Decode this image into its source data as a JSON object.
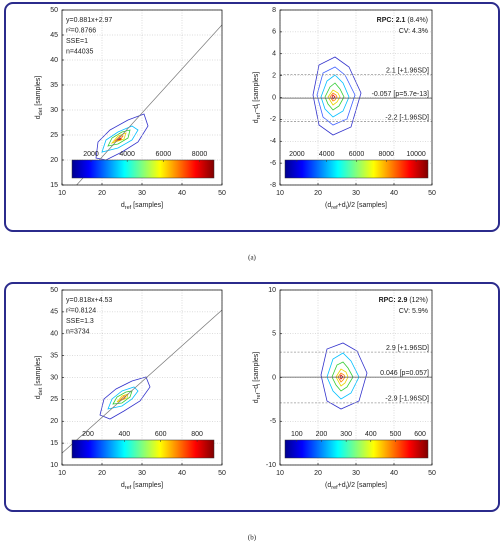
{
  "chart_data": [
    {
      "type": "contour",
      "xlim": [
        10,
        50
      ],
      "ylim": [
        15,
        50
      ],
      "xticks": [
        10,
        20,
        30,
        40,
        50
      ],
      "yticks": [
        15,
        20,
        25,
        30,
        35,
        40,
        45,
        50
      ],
      "xlabel": [
        "d",
        "ref",
        " [samples]"
      ],
      "ylabel": [
        "d",
        "det",
        " [samples]"
      ],
      "annotations": [
        "y=0.881x+2.97",
        "r²=0.8766",
        "SSE=1",
        "n=44035"
      ],
      "fit": {
        "slope": 0.881,
        "intercept": 2.97
      },
      "colorbar": {
        "lim": [
          950,
          8800
        ],
        "ticks": [
          2000,
          4000,
          6000,
          8000
        ]
      },
      "grid": true
    },
    {
      "type": "bland-altman",
      "xlim": [
        10,
        50
      ],
      "ylim": [
        -8,
        8
      ],
      "xticks": [
        10,
        20,
        30,
        40,
        50
      ],
      "yticks": [
        -8,
        -6,
        -4,
        -2,
        0,
        2,
        4,
        6,
        8
      ],
      "xlabel": [
        "(d",
        "ref",
        "+d",
        "i",
        ")/2 [samples]"
      ],
      "ylabel": [
        "d",
        "ref",
        "−d",
        "i",
        " [samples]"
      ],
      "rpc": {
        "label": "RPC: 2.1",
        "detail": " (8.4%)"
      },
      "cv": "CV: 4.3%",
      "hlines": [
        {
          "value": 2.1,
          "label": "2.1 [+1.96SD]"
        },
        {
          "value": -0.057,
          "label": "-0.057 [p=5.7e-13]"
        },
        {
          "value": -2.2,
          "label": "-2.2 [-1.96SD]"
        }
      ],
      "colorbar": {
        "lim": [
          1200,
          10800
        ],
        "ticks": [
          2000,
          4000,
          6000,
          8000,
          10000
        ]
      },
      "grid": true
    },
    {
      "type": "contour",
      "xlim": [
        10,
        50
      ],
      "ylim": [
        10,
        50
      ],
      "xticks": [
        10,
        20,
        30,
        40,
        50
      ],
      "yticks": [
        10,
        15,
        20,
        25,
        30,
        35,
        40,
        45,
        50
      ],
      "xlabel": [
        "d",
        "ref",
        " [samples]"
      ],
      "ylabel": [
        "d",
        "det",
        " [samples]"
      ],
      "annotations": [
        "y=0.818x+4.53",
        "r²=0.8124",
        "SSE=1.3",
        "n=3734"
      ],
      "fit": {
        "slope": 0.818,
        "intercept": 4.53
      },
      "colorbar": {
        "lim": [
          112,
          893
        ],
        "ticks": [
          200,
          400,
          600,
          800
        ]
      },
      "grid": true
    },
    {
      "type": "bland-altman",
      "xlim": [
        10,
        50
      ],
      "ylim": [
        -10,
        10
      ],
      "xticks": [
        10,
        20,
        30,
        40,
        50
      ],
      "yticks": [
        -10,
        -5,
        0,
        5,
        10
      ],
      "xlabel": [
        "(d",
        "ref",
        "+d",
        "i",
        ")/2 [samples]"
      ],
      "ylabel": [
        "d",
        "ref",
        "−d",
        "i",
        " [samples]"
      ],
      "rpc": {
        "label": "RPC: 2.9",
        "detail": " (12%)"
      },
      "cv": "CV: 5.9%",
      "hlines": [
        {
          "value": 2.9,
          "label": "2.9 [+1.96SD]"
        },
        {
          "value": 0.046,
          "label": "0.046 [p=0.057]"
        },
        {
          "value": -2.9,
          "label": "-2.9 [-1.96SD]"
        }
      ],
      "colorbar": {
        "lim": [
          52,
          632
        ],
        "ticks": [
          100,
          200,
          300,
          400,
          500,
          600
        ]
      },
      "grid": true
    }
  ],
  "panel_labels": [
    "(a)",
    "(b)"
  ]
}
